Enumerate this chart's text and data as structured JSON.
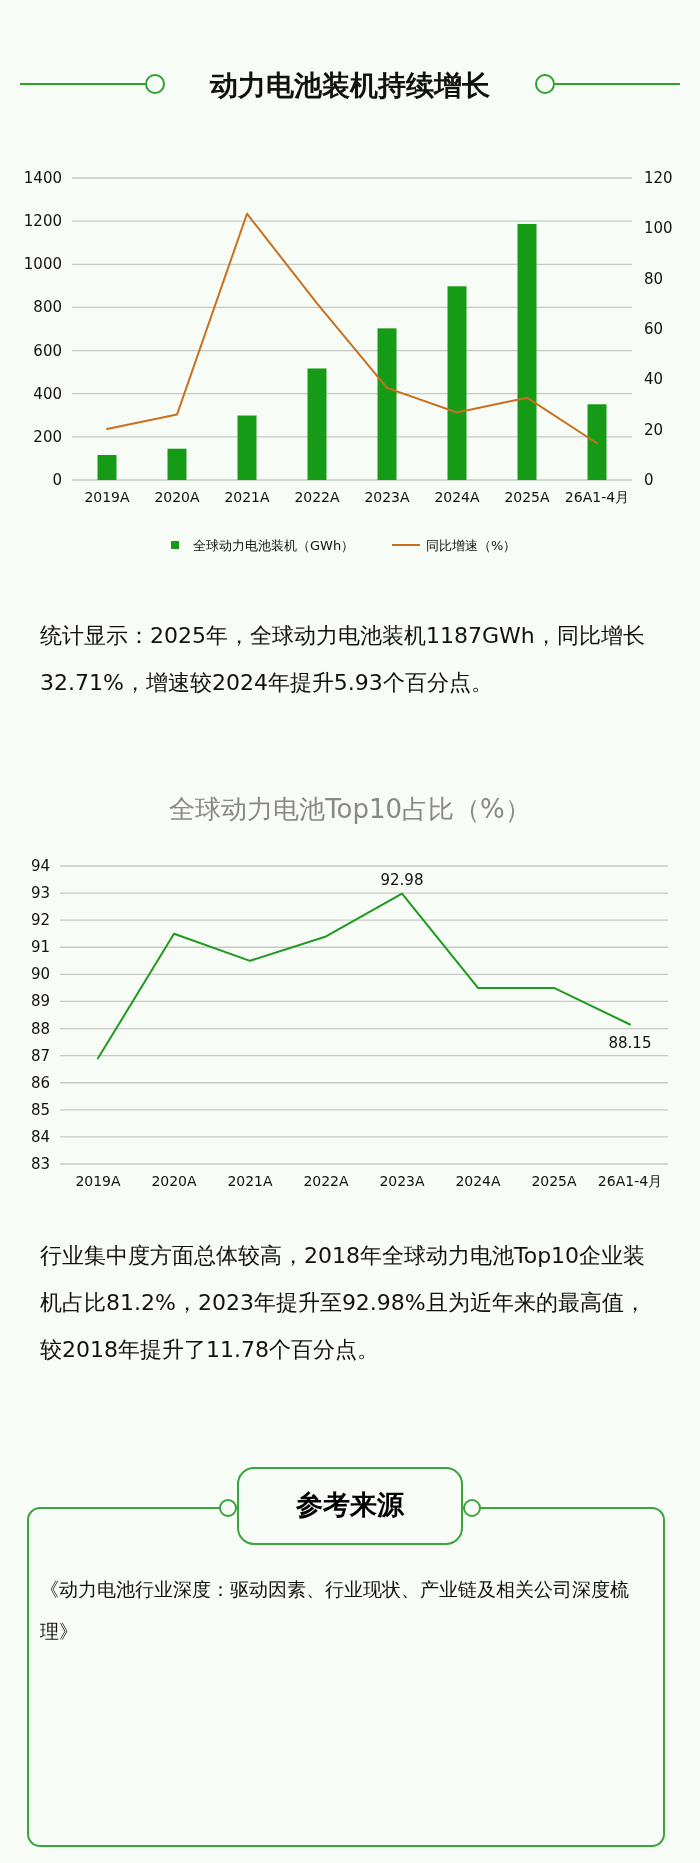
{
  "chart_data": [
    {
      "type": "bar",
      "title": "动力电池装机持续增长",
      "categories": [
        "2019A",
        "2020A",
        "2021A",
        "2022A",
        "2023A",
        "2024A",
        "2025A",
        "26A1-4月"
      ],
      "series": [
        {
          "name": "全球动力电池装机（GWh）",
          "color": "#169b16",
          "values": [
            116,
            145,
            299,
            517,
            703,
            898,
            1187,
            351
          ]
        },
        {
          "name": "同比增速（%）",
          "type": "line",
          "axis": "y2",
          "color": "#c8701e",
          "values": [
            20.3,
            26.0,
            105.8,
            70.2,
            36.6,
            26.8,
            32.7,
            14.6
          ]
        }
      ],
      "ylim": [
        0,
        1400
      ],
      "yticks": [
        0,
        200,
        400,
        600,
        800,
        1000,
        1200,
        1400
      ],
      "y2lim": [
        0,
        120
      ],
      "y2ticks": [
        0,
        20,
        40,
        60,
        80,
        100,
        120
      ],
      "grid": "y",
      "legend": "bottom",
      "annotations": [
        "统计显示：2025年，全球动力电池装机1187GWh，同比增长32.71%，增速较2024年提升5.93个百分点。"
      ]
    },
    {
      "type": "line",
      "title": "全球动力电池Top10占比（%）",
      "categories": [
        "2019A",
        "2020A",
        "2021A",
        "2022A",
        "2023A",
        "2024A",
        "2025A",
        "26A1-4月"
      ],
      "values": [
        86.9,
        91.5,
        90.5,
        91.4,
        92.98,
        89.5,
        89.5,
        88.15
      ],
      "color": "#1e9a1e",
      "value_labels": [
        null,
        null,
        null,
        null,
        "92.98",
        null,
        null,
        "88.15"
      ],
      "ylim": [
        83,
        94
      ],
      "yticks": [
        83,
        84,
        85,
        86,
        87,
        88,
        89,
        90,
        91,
        92,
        93,
        94
      ],
      "grid": "y",
      "annotations": [
        "行业集中度方面总体较高，2018年全球动力电池Top10企业装机占比81.2%，2023年提升至92.98%且为近年来的最高值，较2018年提升了11.78个百分点。",
        "参考来源",
        "《动力电池行业深度：驱动因素、行业现状、产业链及相关公司深度梳理》"
      ]
    }
  ]
}
